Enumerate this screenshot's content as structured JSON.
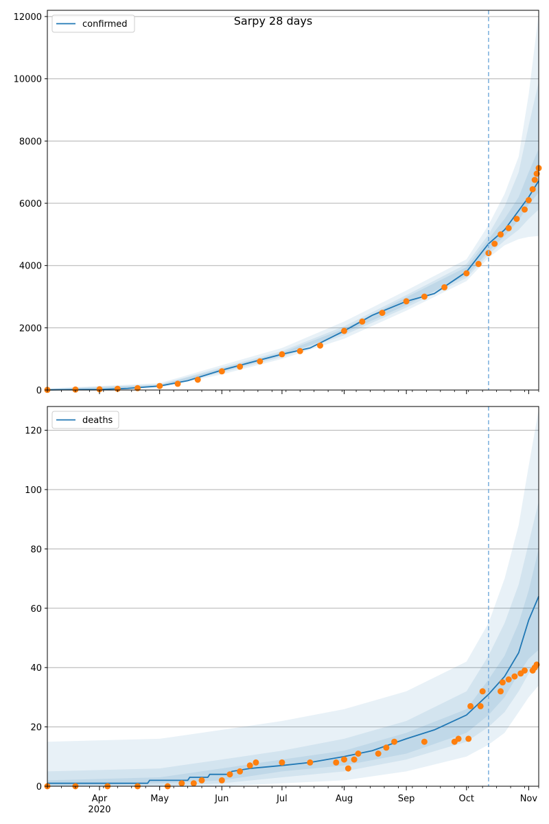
{
  "figure_title": "Sarpy 28 days",
  "colors": {
    "model": "#1f77b4",
    "observed": "#ff7f0e",
    "band": "#1f77b4",
    "grid": "#b0b0b0",
    "forecast_line": "#7fb1de"
  },
  "chart_data": [
    {
      "type": "line",
      "panel": "confirmed",
      "legend": [
        "confirmed"
      ],
      "legend_position": "upper-left",
      "grid": "horizontal",
      "forecast_start": "2020-10-12",
      "xlim": [
        "2020-03-06",
        "2020-11-06"
      ],
      "ylim": [
        0,
        12200
      ],
      "yticks": [
        0,
        2000,
        4000,
        6000,
        8000,
        10000,
        12000
      ],
      "xticks": [
        {
          "date": "2020-04-01",
          "label": "Apr",
          "sublabel": "2020"
        },
        {
          "date": "2020-05-01",
          "label": "May"
        },
        {
          "date": "2020-06-01",
          "label": "Jun"
        },
        {
          "date": "2020-07-01",
          "label": "Jul"
        },
        {
          "date": "2020-08-01",
          "label": "Aug"
        },
        {
          "date": "2020-09-01",
          "label": "Sep"
        },
        {
          "date": "2020-10-01",
          "label": "Oct"
        },
        {
          "date": "2020-11-01",
          "label": "Nov"
        }
      ],
      "model_line": [
        [
          "2020-03-06",
          5
        ],
        [
          "2020-04-01",
          20
        ],
        [
          "2020-04-15",
          50
        ],
        [
          "2020-05-01",
          130
        ],
        [
          "2020-05-15",
          300
        ],
        [
          "2020-06-01",
          640
        ],
        [
          "2020-06-15",
          880
        ],
        [
          "2020-07-01",
          1150
        ],
        [
          "2020-07-15",
          1350
        ],
        [
          "2020-08-01",
          1900
        ],
        [
          "2020-08-15",
          2400
        ],
        [
          "2020-09-01",
          2850
        ],
        [
          "2020-09-15",
          3100
        ],
        [
          "2020-10-01",
          3800
        ],
        [
          "2020-10-12",
          4700
        ],
        [
          "2020-10-20",
          5150
        ],
        [
          "2020-11-01",
          6200
        ],
        [
          "2020-11-06",
          6720
        ]
      ],
      "bands": [
        {
          "x": [
            "2020-03-06",
            "2020-05-01",
            "2020-06-01",
            "2020-07-01",
            "2020-08-01",
            "2020-09-01",
            "2020-10-01",
            "2020-10-12",
            "2020-10-20",
            "2020-10-27",
            "2020-11-01",
            "2020-11-06"
          ],
          "lower": [
            0,
            80,
            500,
            1000,
            1650,
            2550,
            3500,
            4250,
            4650,
            4850,
            4920,
            4950
          ],
          "upper": [
            50,
            220,
            800,
            1350,
            2200,
            3200,
            4200,
            5300,
            6300,
            7500,
            9500,
            12100
          ]
        },
        {
          "x": [
            "2020-03-06",
            "2020-05-01",
            "2020-06-01",
            "2020-07-01",
            "2020-08-01",
            "2020-09-01",
            "2020-10-01",
            "2020-10-12",
            "2020-10-20",
            "2020-10-27",
            "2020-11-01",
            "2020-11-06"
          ],
          "lower": [
            0,
            95,
            560,
            1060,
            1760,
            2650,
            3600,
            4350,
            4800,
            5150,
            5500,
            5800
          ],
          "upper": [
            40,
            180,
            730,
            1250,
            2050,
            3050,
            4050,
            5000,
            5900,
            7000,
            8500,
            9900
          ]
        },
        {
          "x": [
            "2020-03-06",
            "2020-05-01",
            "2020-06-01",
            "2020-07-01",
            "2020-08-01",
            "2020-09-01",
            "2020-10-01",
            "2020-10-12",
            "2020-10-20",
            "2020-10-27",
            "2020-11-01",
            "2020-11-06"
          ],
          "lower": [
            0,
            110,
            600,
            1110,
            1830,
            2730,
            3680,
            4450,
            4950,
            5450,
            5950,
            6350
          ],
          "upper": [
            30,
            160,
            690,
            1200,
            1970,
            2980,
            3950,
            4850,
            5500,
            6200,
            7000,
            7750
          ]
        }
      ],
      "observed": [
        [
          "2020-03-06",
          5
        ],
        [
          "2020-03-20",
          15
        ],
        [
          "2020-04-01",
          25
        ],
        [
          "2020-04-10",
          40
        ],
        [
          "2020-04-20",
          60
        ],
        [
          "2020-05-01",
          130
        ],
        [
          "2020-05-10",
          200
        ],
        [
          "2020-05-20",
          330
        ],
        [
          "2020-06-01",
          600
        ],
        [
          "2020-06-10",
          750
        ],
        [
          "2020-06-20",
          920
        ],
        [
          "2020-07-01",
          1150
        ],
        [
          "2020-07-10",
          1250
        ],
        [
          "2020-07-20",
          1430
        ],
        [
          "2020-08-01",
          1900
        ],
        [
          "2020-08-10",
          2200
        ],
        [
          "2020-08-20",
          2480
        ],
        [
          "2020-09-01",
          2850
        ],
        [
          "2020-09-10",
          3000
        ],
        [
          "2020-09-20",
          3300
        ],
        [
          "2020-10-01",
          3750
        ],
        [
          "2020-10-07",
          4050
        ],
        [
          "2020-10-12",
          4400
        ],
        [
          "2020-10-15",
          4700
        ],
        [
          "2020-10-18",
          5000
        ],
        [
          "2020-10-22",
          5200
        ],
        [
          "2020-10-26",
          5500
        ],
        [
          "2020-10-30",
          5800
        ],
        [
          "2020-11-01",
          6100
        ],
        [
          "2020-11-03",
          6450
        ],
        [
          "2020-11-04",
          6750
        ],
        [
          "2020-11-05",
          6950
        ],
        [
          "2020-11-06",
          7130
        ]
      ]
    },
    {
      "type": "line",
      "panel": "deaths",
      "legend": [
        "deaths"
      ],
      "legend_position": "upper-left",
      "grid": "horizontal",
      "forecast_start": "2020-10-12",
      "xlim": [
        "2020-03-06",
        "2020-11-06"
      ],
      "ylim": [
        0,
        128
      ],
      "yticks": [
        0,
        20,
        40,
        60,
        80,
        100,
        120
      ],
      "xticks": [
        {
          "date": "2020-04-01",
          "label": "Apr",
          "sublabel": "2020"
        },
        {
          "date": "2020-05-01",
          "label": "May"
        },
        {
          "date": "2020-06-01",
          "label": "Jun"
        },
        {
          "date": "2020-07-01",
          "label": "Jul"
        },
        {
          "date": "2020-08-01",
          "label": "Aug"
        },
        {
          "date": "2020-09-01",
          "label": "Sep"
        },
        {
          "date": "2020-10-01",
          "label": "Oct"
        },
        {
          "date": "2020-11-01",
          "label": "Nov"
        }
      ],
      "model_line": [
        [
          "2020-03-06",
          1
        ],
        [
          "2020-04-25",
          1
        ],
        [
          "2020-04-26",
          2
        ],
        [
          "2020-05-15",
          2
        ],
        [
          "2020-05-16",
          3
        ],
        [
          "2020-05-25",
          3
        ],
        [
          "2020-05-26",
          4
        ],
        [
          "2020-06-05",
          4
        ],
        [
          "2020-06-06",
          5
        ],
        [
          "2020-06-15",
          6
        ],
        [
          "2020-07-01",
          7
        ],
        [
          "2020-07-15",
          8
        ],
        [
          "2020-08-01",
          10
        ],
        [
          "2020-08-15",
          12
        ],
        [
          "2020-09-01",
          16
        ],
        [
          "2020-09-15",
          19
        ],
        [
          "2020-10-01",
          24
        ],
        [
          "2020-10-12",
          31
        ],
        [
          "2020-10-20",
          37
        ],
        [
          "2020-10-27",
          45
        ],
        [
          "2020-11-01",
          56
        ],
        [
          "2020-11-06",
          64
        ]
      ],
      "bands": [
        {
          "x": [
            "2020-03-06",
            "2020-05-01",
            "2020-06-01",
            "2020-07-01",
            "2020-08-01",
            "2020-09-01",
            "2020-10-01",
            "2020-10-12",
            "2020-10-20",
            "2020-10-27",
            "2020-11-01",
            "2020-11-06"
          ],
          "lower": [
            0,
            0,
            0,
            1,
            2,
            5,
            10,
            14,
            18,
            25,
            30,
            34
          ],
          "upper": [
            15,
            16,
            19,
            22,
            26,
            32,
            42,
            55,
            70,
            88,
            108,
            127
          ]
        },
        {
          "x": [
            "2020-03-06",
            "2020-05-01",
            "2020-06-01",
            "2020-07-01",
            "2020-08-01",
            "2020-09-01",
            "2020-10-01",
            "2020-10-12",
            "2020-10-20",
            "2020-10-27",
            "2020-11-01",
            "2020-11-06"
          ],
          "lower": [
            0,
            0,
            1,
            3,
            5,
            9,
            15,
            20,
            25,
            32,
            38,
            42
          ],
          "upper": [
            5,
            6,
            9,
            12,
            16,
            22,
            32,
            44,
            55,
            68,
            82,
            96
          ]
        },
        {
          "x": [
            "2020-03-06",
            "2020-05-01",
            "2020-06-01",
            "2020-07-01",
            "2020-08-01",
            "2020-09-01",
            "2020-10-01",
            "2020-10-12",
            "2020-10-20",
            "2020-10-27",
            "2020-11-01",
            "2020-11-06"
          ],
          "lower": [
            0,
            1,
            2,
            5,
            7,
            11,
            18,
            24,
            30,
            38,
            43,
            46
          ],
          "upper": [
            2,
            3,
            6,
            9,
            12,
            18,
            26,
            36,
            44,
            55,
            66,
            80
          ]
        }
      ],
      "observed": [
        [
          "2020-03-06",
          0
        ],
        [
          "2020-03-20",
          0
        ],
        [
          "2020-04-05",
          0
        ],
        [
          "2020-04-20",
          0
        ],
        [
          "2020-05-05",
          0
        ],
        [
          "2020-05-12",
          1
        ],
        [
          "2020-05-18",
          1
        ],
        [
          "2020-05-22",
          2
        ],
        [
          "2020-06-01",
          2
        ],
        [
          "2020-06-05",
          4
        ],
        [
          "2020-06-10",
          5
        ],
        [
          "2020-06-15",
          7
        ],
        [
          "2020-06-18",
          8
        ],
        [
          "2020-07-01",
          8
        ],
        [
          "2020-07-15",
          8
        ],
        [
          "2020-07-28",
          8
        ],
        [
          "2020-08-01",
          9
        ],
        [
          "2020-08-03",
          6
        ],
        [
          "2020-08-06",
          9
        ],
        [
          "2020-08-08",
          11
        ],
        [
          "2020-08-18",
          11
        ],
        [
          "2020-08-22",
          13
        ],
        [
          "2020-08-26",
          15
        ],
        [
          "2020-09-10",
          15
        ],
        [
          "2020-09-25",
          15
        ],
        [
          "2020-09-27",
          16
        ],
        [
          "2020-10-02",
          16
        ],
        [
          "2020-10-03",
          27
        ],
        [
          "2020-10-08",
          27
        ],
        [
          "2020-10-09",
          32
        ],
        [
          "2020-10-18",
          32
        ],
        [
          "2020-10-19",
          35
        ],
        [
          "2020-10-22",
          36
        ],
        [
          "2020-10-25",
          37
        ],
        [
          "2020-10-28",
          38
        ],
        [
          "2020-10-30",
          39
        ],
        [
          "2020-11-03",
          39
        ],
        [
          "2020-11-04",
          40
        ],
        [
          "2020-11-05",
          41
        ]
      ]
    }
  ]
}
